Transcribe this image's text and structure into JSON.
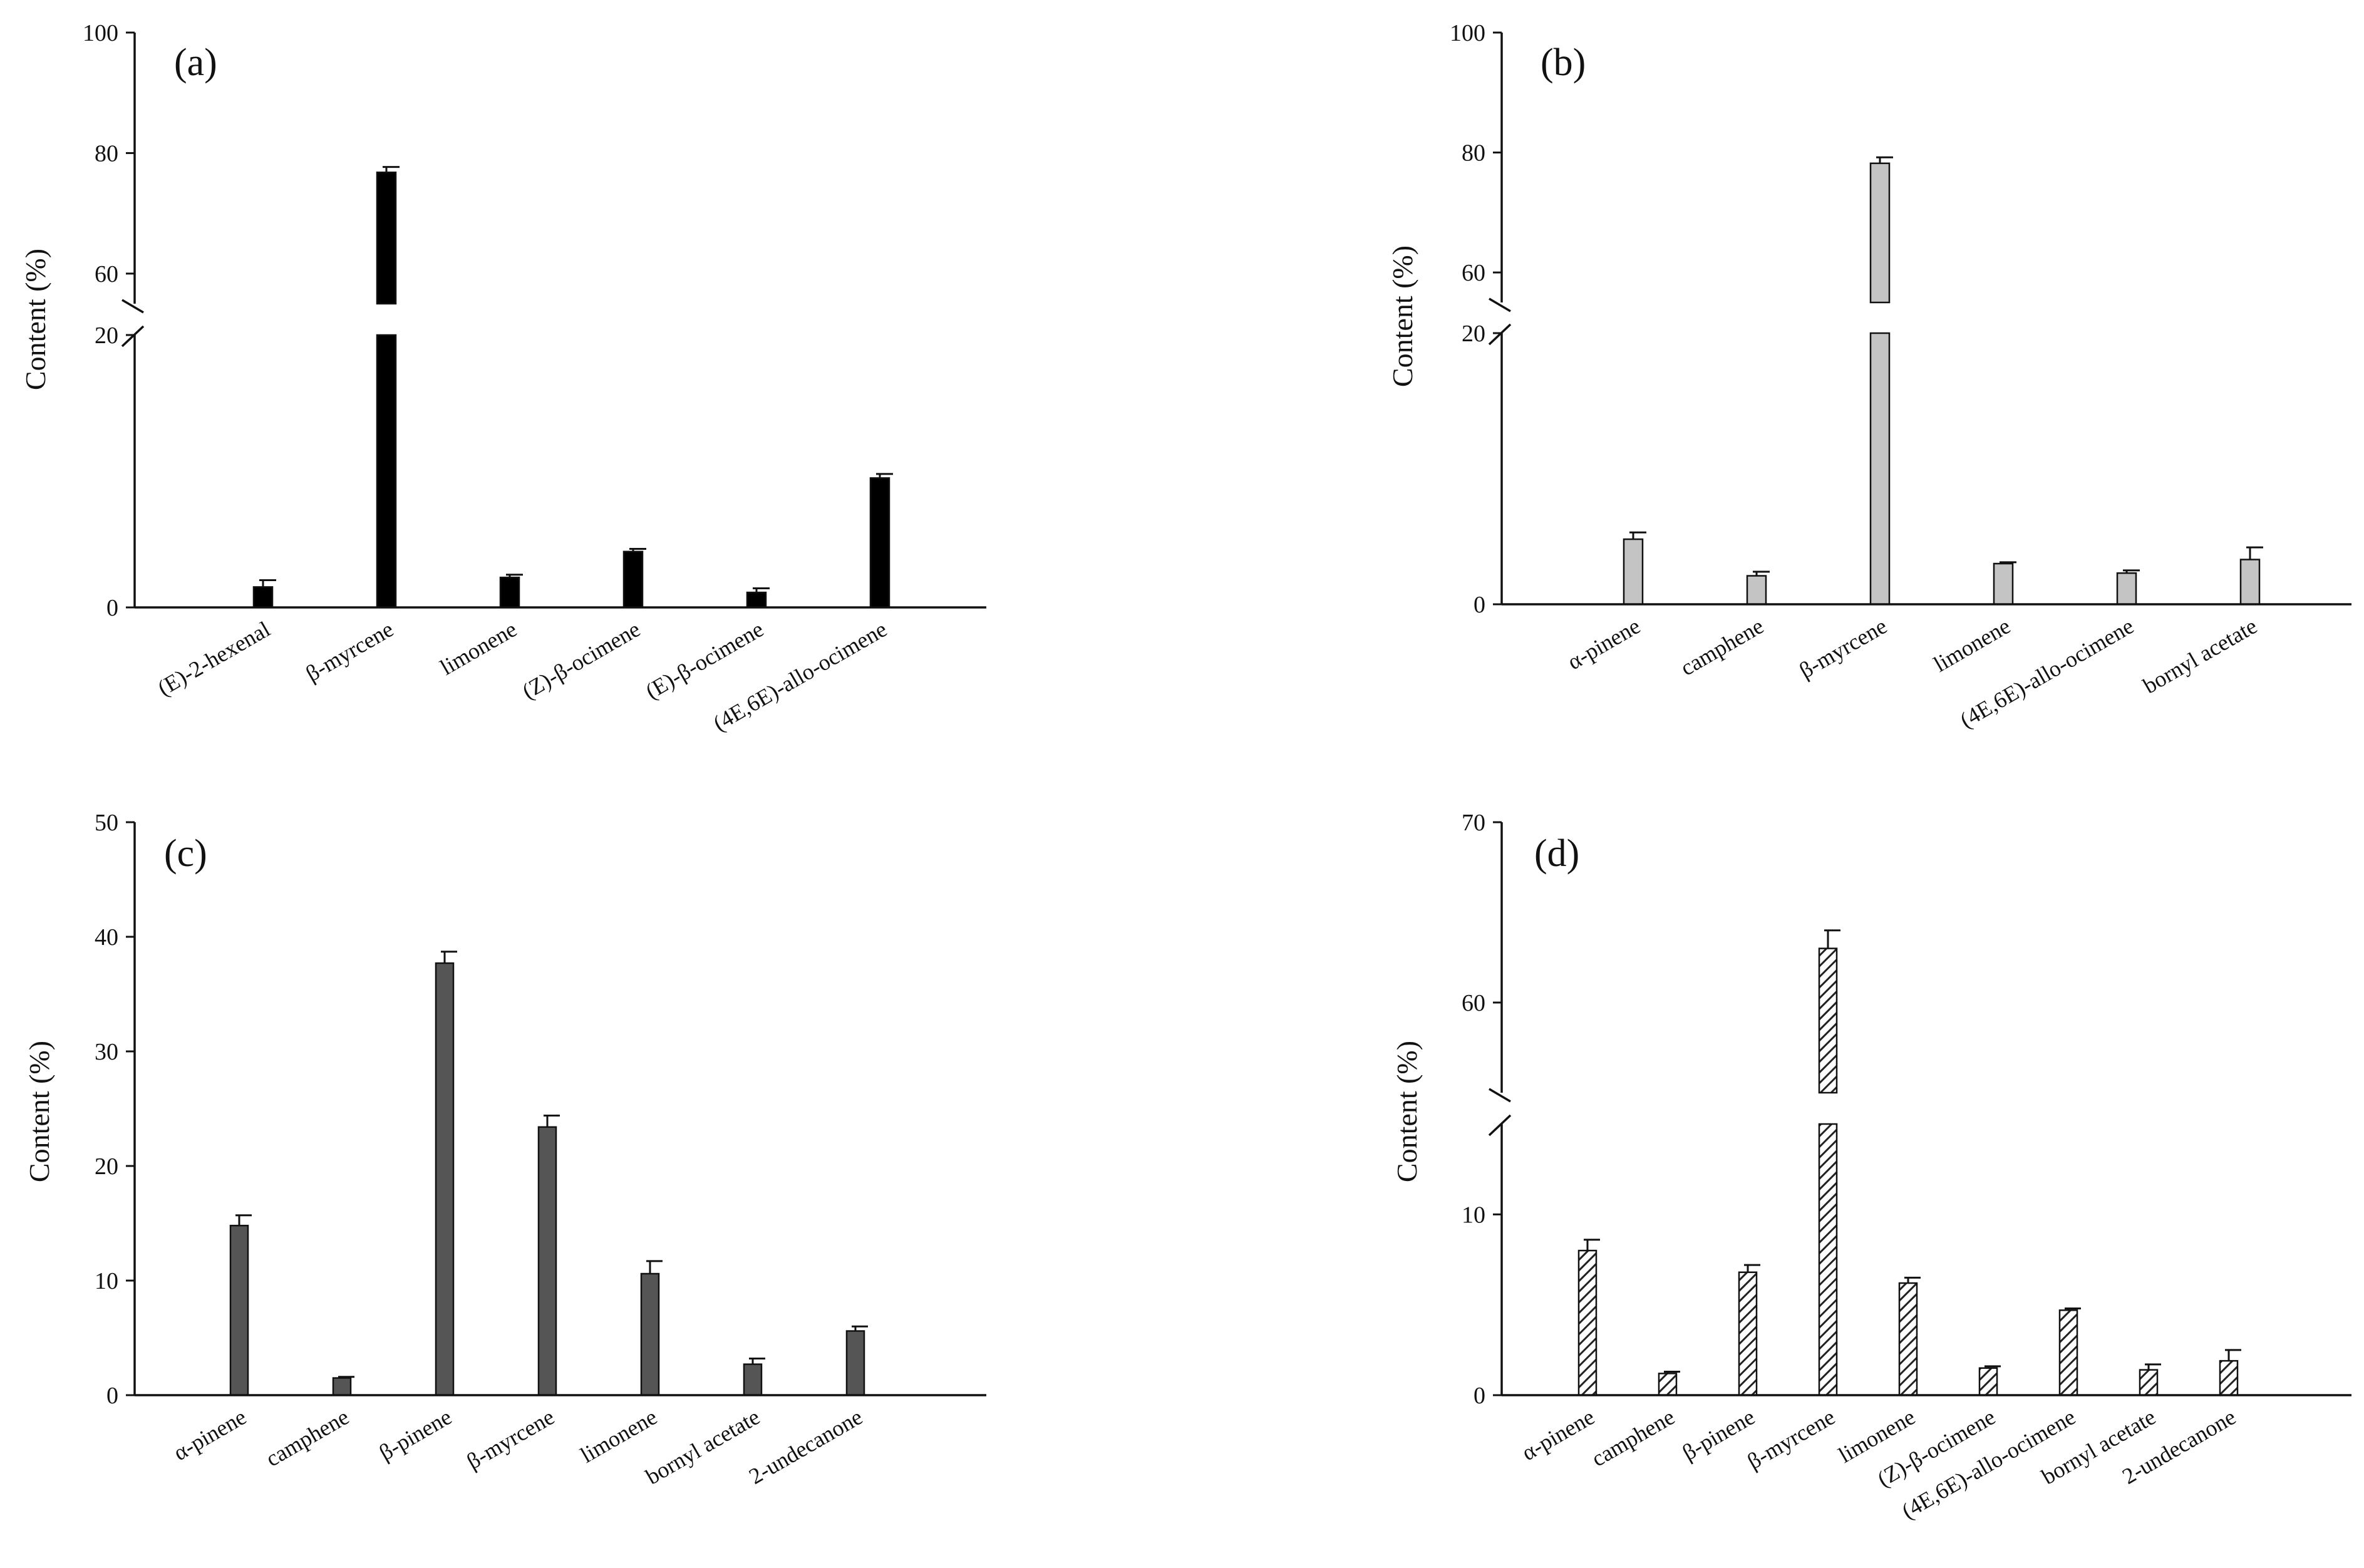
{
  "y_title": "Content (%)",
  "chart_data": [
    {
      "type": "bar",
      "label": "(a)",
      "ylabel": "Content (%)",
      "broken_axis": true,
      "y_ticks_lower": [
        "0",
        "20"
      ],
      "y_ticks_upper": [
        "60",
        "80",
        "100"
      ],
      "ylim_lower": [
        0,
        20
      ],
      "ylim_upper": [
        55,
        100
      ],
      "fill": "#000000",
      "categories": [
        {
          "name": "(E)-2-hexenal",
          "value": 1.5,
          "err": 0.5
        },
        {
          "name": "β-myrcene",
          "value": 76.8,
          "err": 0.9
        },
        {
          "name": "limonene",
          "value": 2.2,
          "err": 0.2
        },
        {
          "name": "(Z)-β-ocimene",
          "value": 4.1,
          "err": 0.2
        },
        {
          "name": "(E)-β-ocimene",
          "value": 1.1,
          "err": 0.3
        },
        {
          "name": "(4E,6E)-allo-ocimene",
          "value": 9.5,
          "err": 0.3
        }
      ]
    },
    {
      "type": "bar",
      "label": "(b)",
      "ylabel": "Content (%)",
      "broken_axis": true,
      "y_ticks_lower": [
        "0",
        "20"
      ],
      "y_ticks_upper": [
        "60",
        "80",
        "100"
      ],
      "ylim_lower": [
        0,
        20
      ],
      "ylim_upper": [
        55,
        100
      ],
      "fill": "#c4c4c4",
      "categories": [
        {
          "name": "α-pinene",
          "value": 4.8,
          "err": 0.5
        },
        {
          "name": "camphene",
          "value": 2.1,
          "err": 0.3
        },
        {
          "name": "β-myrcene",
          "value": 78.2,
          "err": 1.0
        },
        {
          "name": "limonene",
          "value": 3.0,
          "err": 0.1
        },
        {
          "name": "(4E,6E)-allo-ocimene",
          "value": 2.3,
          "err": 0.2
        },
        {
          "name": "bornyl acetate",
          "value": 3.3,
          "err": 0.9
        }
      ]
    },
    {
      "type": "bar",
      "label": "(c)",
      "ylabel": "Content (%)",
      "broken_axis": false,
      "y_ticks": [
        "0",
        "10",
        "20",
        "30",
        "40",
        "50"
      ],
      "ylim": [
        0,
        50
      ],
      "fill": "#555555",
      "categories": [
        {
          "name": "α-pinene",
          "value": 14.8,
          "err": 0.9
        },
        {
          "name": "camphene",
          "value": 1.5,
          "err": 0.1
        },
        {
          "name": "β-pinene",
          "value": 37.7,
          "err": 1.0
        },
        {
          "name": "β-myrcene",
          "value": 23.4,
          "err": 1.0
        },
        {
          "name": "limonene",
          "value": 10.6,
          "err": 1.1
        },
        {
          "name": "bornyl acetate",
          "value": 2.7,
          "err": 0.5
        },
        {
          "name": "2-undecanone",
          "value": 5.6,
          "err": 0.4
        }
      ]
    },
    {
      "type": "bar",
      "label": "(d)",
      "ylabel": "Content (%)",
      "broken_axis": true,
      "y_ticks_lower": [
        "0",
        "10"
      ],
      "y_ticks_upper": [
        "60",
        "70"
      ],
      "ylim_lower": [
        0,
        15
      ],
      "ylim_upper": [
        55,
        70
      ],
      "fill": "hatch",
      "categories": [
        {
          "name": "α-pinene",
          "value": 8.0,
          "err": 0.6
        },
        {
          "name": "camphene",
          "value": 1.2,
          "err": 0.1
        },
        {
          "name": "β-pinene",
          "value": 6.8,
          "err": 0.4
        },
        {
          "name": "β-myrcene",
          "value": 63.0,
          "err": 1.0
        },
        {
          "name": "limonene",
          "value": 6.2,
          "err": 0.3
        },
        {
          "name": "(Z)-β-ocimene",
          "value": 1.5,
          "err": 0.1
        },
        {
          "name": "(4E,6E)-allo-ocimene",
          "value": 4.7,
          "err": 0.1
        },
        {
          "name": "bornyl acetate",
          "value": 1.4,
          "err": 0.3
        },
        {
          "name": "2-undecanone",
          "value": 1.9,
          "err": 0.6
        }
      ]
    }
  ]
}
